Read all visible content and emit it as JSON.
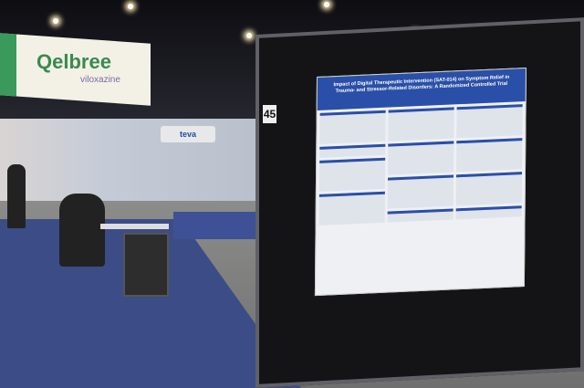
{
  "scene": {
    "booth_brand": "Qelbree",
    "booth_brand_sub": "viloxazine",
    "sponsor_sign": "teva",
    "poster_board_number": "45",
    "poster_title": "Impact of Digital Therapeutic Intervention (SAT-014) on Symptom Relief in Trauma- and Stressor-Related Disorders: A Randomized Controlled Trial",
    "colors": {
      "poster_header": "#2a4fa8",
      "carpet": "#3c4c86",
      "brand_green": "#3a8a4c"
    }
  }
}
